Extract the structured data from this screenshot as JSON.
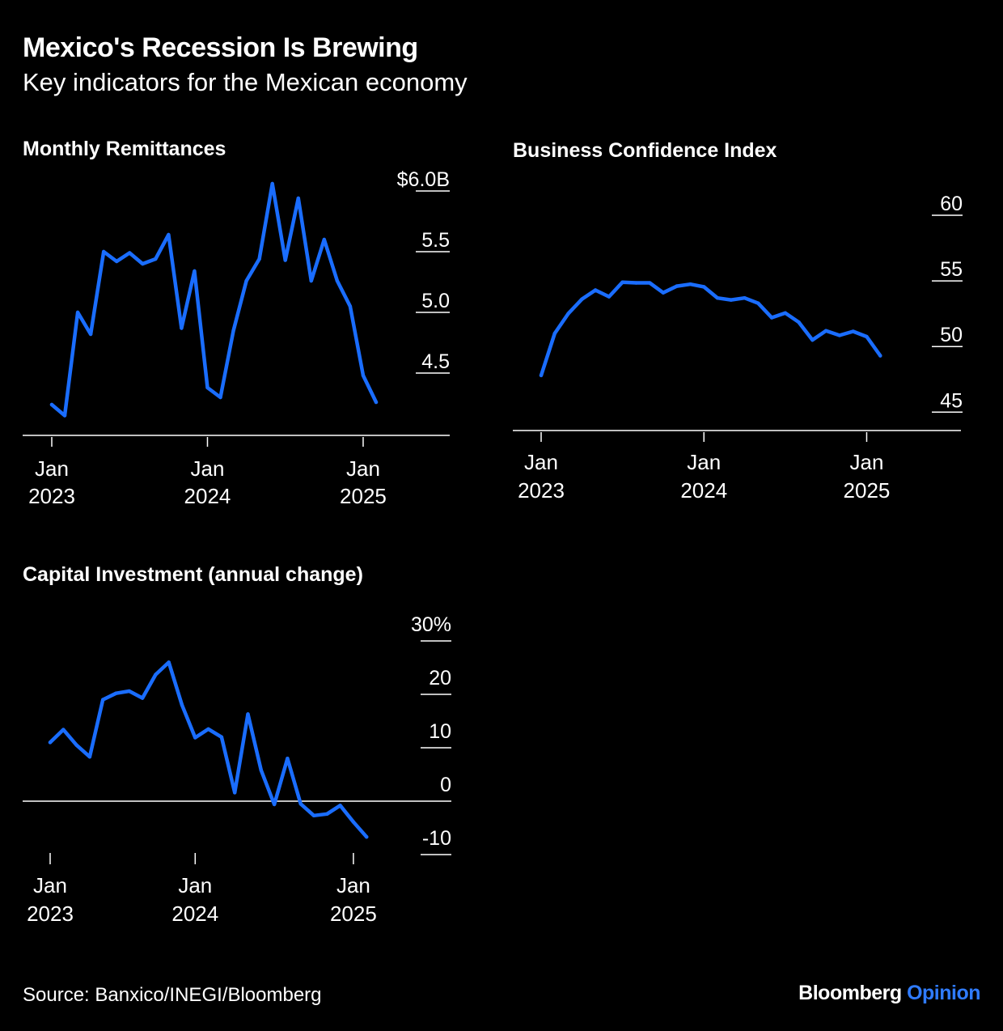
{
  "header": {
    "title": "Mexico's Recession Is Brewing",
    "subtitle": "Key indicators for the Mexican economy"
  },
  "footer": {
    "source": "Source: Banxico/INEGI/Bloomberg",
    "brand_main": "Bloomberg",
    "brand_accent": "Opinion"
  },
  "colors": {
    "line": "#1a6dff",
    "background": "#000000",
    "text": "#ffffff",
    "brand_accent": "#2f7bff"
  },
  "chart_data": [
    {
      "type": "line",
      "title": "Monthly Remittances",
      "x_start": "2023-01",
      "x_ticks": [
        {
          "line1": "Jan",
          "line2": "2023"
        },
        {
          "line1": "Jan",
          "line2": "2024"
        },
        {
          "line1": "Jan",
          "line2": "2025"
        }
      ],
      "y_ticks": [
        "$6.0B",
        "5.5",
        "5.0",
        "4.5"
      ],
      "y_tick_values": [
        6.0,
        5.5,
        5.0,
        4.5
      ],
      "ylim": [
        4.0,
        6.0
      ],
      "series": [
        {
          "values": [
            4.24,
            4.15,
            5.0,
            4.82,
            5.5,
            5.42,
            5.49,
            5.4,
            5.44,
            5.64,
            4.87,
            5.34,
            4.38,
            4.3,
            4.85,
            5.26,
            5.44,
            6.06,
            5.43,
            5.94,
            5.26,
            5.6,
            5.26,
            5.05,
            4.48,
            4.26
          ]
        }
      ]
    },
    {
      "type": "line",
      "title": "Business Confidence Index",
      "x_start": "2023-01",
      "x_ticks": [
        {
          "line1": "Jan",
          "line2": "2023"
        },
        {
          "line1": "Jan",
          "line2": "2024"
        },
        {
          "line1": "Jan",
          "line2": "2025"
        }
      ],
      "y_ticks": [
        "60",
        "55",
        "50",
        "45"
      ],
      "y_tick_values": [
        60,
        55,
        50,
        45
      ],
      "ylim": [
        43.6,
        60
      ],
      "series": [
        {
          "values": [
            47.8,
            51.0,
            52.5,
            53.6,
            54.3,
            53.8,
            54.9,
            54.85,
            54.85,
            54.1,
            54.6,
            54.75,
            54.55,
            53.7,
            53.55,
            53.7,
            53.3,
            52.2,
            52.55,
            51.85,
            50.5,
            51.2,
            50.85,
            51.15,
            50.75,
            49.3
          ]
        }
      ]
    },
    {
      "type": "line",
      "title": "Capital Investment (annual change)",
      "x_start": "2023-01",
      "x_ticks": [
        {
          "line1": "Jan",
          "line2": "2023"
        },
        {
          "line1": "Jan",
          "line2": "2024"
        },
        {
          "line1": "Jan",
          "line2": "2025"
        }
      ],
      "y_ticks": [
        "30%",
        "20",
        "10",
        "0",
        "-10"
      ],
      "y_tick_values": [
        30,
        20,
        10,
        0,
        -10
      ],
      "ylim": [
        -10,
        30
      ],
      "zero_baseline": true,
      "series": [
        {
          "values": [
            11.0,
            13.4,
            10.5,
            8.3,
            19.0,
            20.2,
            20.6,
            19.3,
            23.7,
            26.0,
            18.0,
            11.9,
            13.5,
            12.0,
            1.6,
            16.3,
            5.8,
            -0.6,
            8.0,
            -0.5,
            -2.7,
            -2.4,
            -0.8,
            -3.9,
            -6.7
          ]
        }
      ]
    }
  ]
}
